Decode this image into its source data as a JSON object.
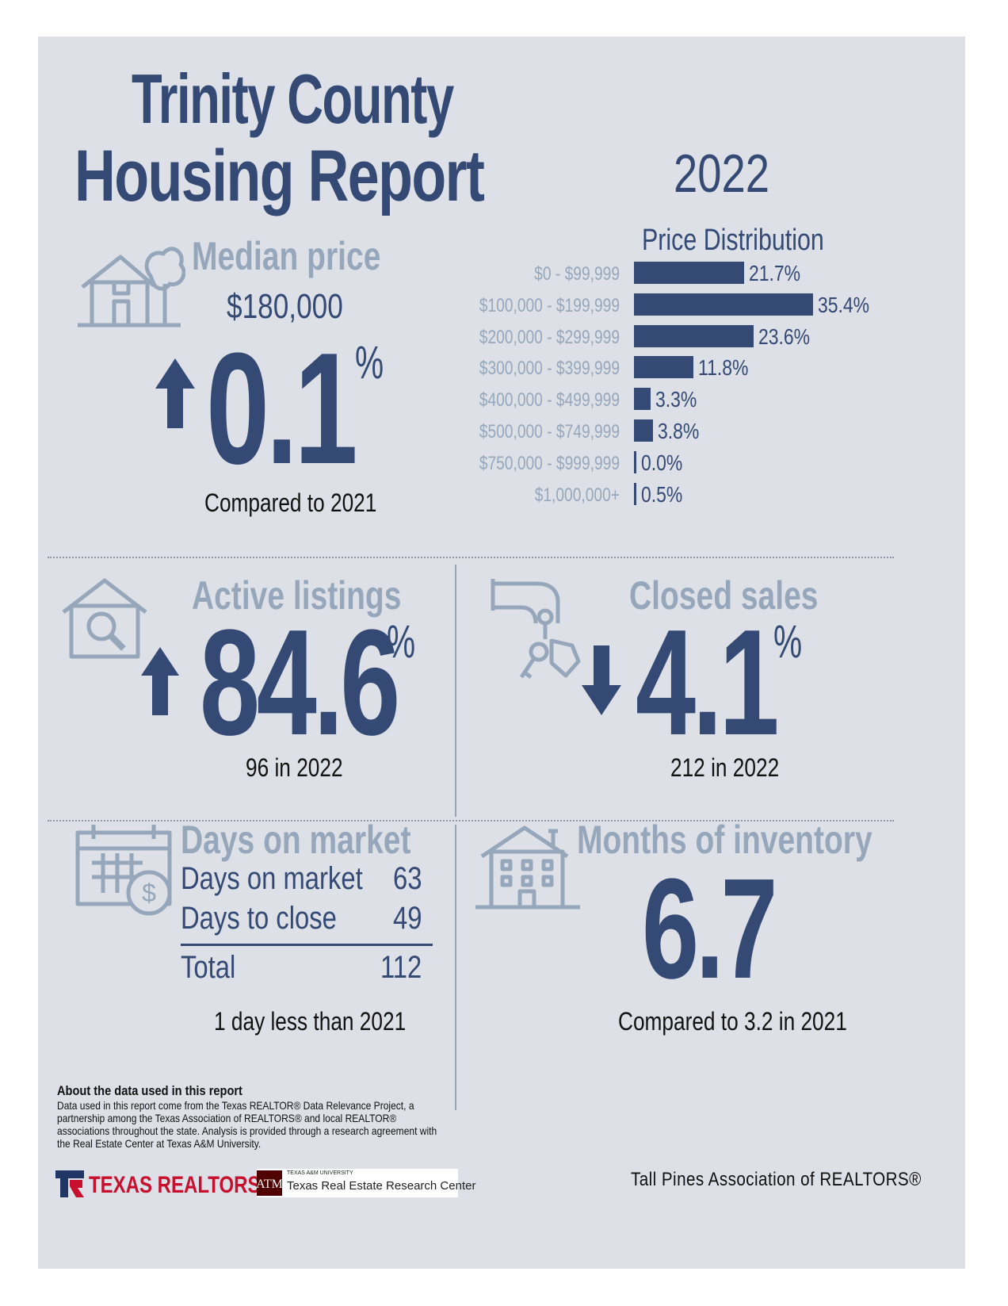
{
  "header": {
    "title_line1": "Trinity County",
    "title_line2": "Housing Report",
    "year": "2022"
  },
  "median_price": {
    "heading": "Median price",
    "value": "$180,000",
    "change": "0.1",
    "percent_sign": "%",
    "direction": "up",
    "comparison": "Compared to 2021",
    "icon": "house-tree-icon"
  },
  "chart_data": {
    "type": "bar",
    "title": "Price Distribution",
    "orientation": "horizontal",
    "categories": [
      "$0 - $99,999",
      "$100,000 - $199,999",
      "$200,000 - $299,999",
      "$300,000 - $399,999",
      "$400,000 - $499,999",
      "$500,000 - $749,999",
      "$750,000 - $999,999",
      "$1,000,000+"
    ],
    "values": [
      21.7,
      35.4,
      23.6,
      11.8,
      3.3,
      3.8,
      0.0,
      0.5
    ],
    "value_labels": [
      "21.7%",
      "35.4%",
      "23.6%",
      "11.8%",
      "3.3%",
      "3.8%",
      "0.0%",
      "0.5%"
    ],
    "xlim": [
      0,
      35.4
    ],
    "bar_color": "#344a75"
  },
  "active_listings": {
    "heading": "Active listings",
    "change": "84.6",
    "percent_sign": "%",
    "direction": "up",
    "detail": "96 in 2022",
    "icon": "house-magnifier-icon"
  },
  "closed_sales": {
    "heading": "Closed sales",
    "change": "4.1",
    "percent_sign": "%",
    "direction": "down",
    "detail": "212 in 2022",
    "icon": "hand-keys-icon"
  },
  "days_on_market": {
    "heading": "Days on market",
    "rows": [
      {
        "label": "Days on market",
        "value": "63"
      },
      {
        "label": "Days to close",
        "value": "49"
      }
    ],
    "total": {
      "label": "Total",
      "value": "112"
    },
    "comparison": "1 day less than 2021",
    "icon": "calendar-dollar-icon"
  },
  "months_inventory": {
    "heading": "Months of inventory",
    "value": "6.7",
    "comparison": "Compared to 3.2 in 2021",
    "icon": "apartment-building-icon"
  },
  "footer": {
    "about_heading": "About the data used in this report",
    "about_text": "Data used in this report come from the Texas REALTOR® Data Relevance Project, a partnership among the Texas Association of REALTORS® and local REALTOR® associations throughout the state. Analysis is provided through a research agreement with the Real Estate Center at Texas A&M University.",
    "logo_texas_realtors": "TEXAS REALTORS",
    "logo_tamu_small": "TEXAS A&M UNIVERSITY",
    "logo_tamu_name": "Texas Real Estate Research Center",
    "association": "Tall Pines Association of REALTORS®"
  },
  "colors": {
    "navy": "#344a75",
    "muted": "#96a7bc",
    "panel": "#dde0e6"
  }
}
